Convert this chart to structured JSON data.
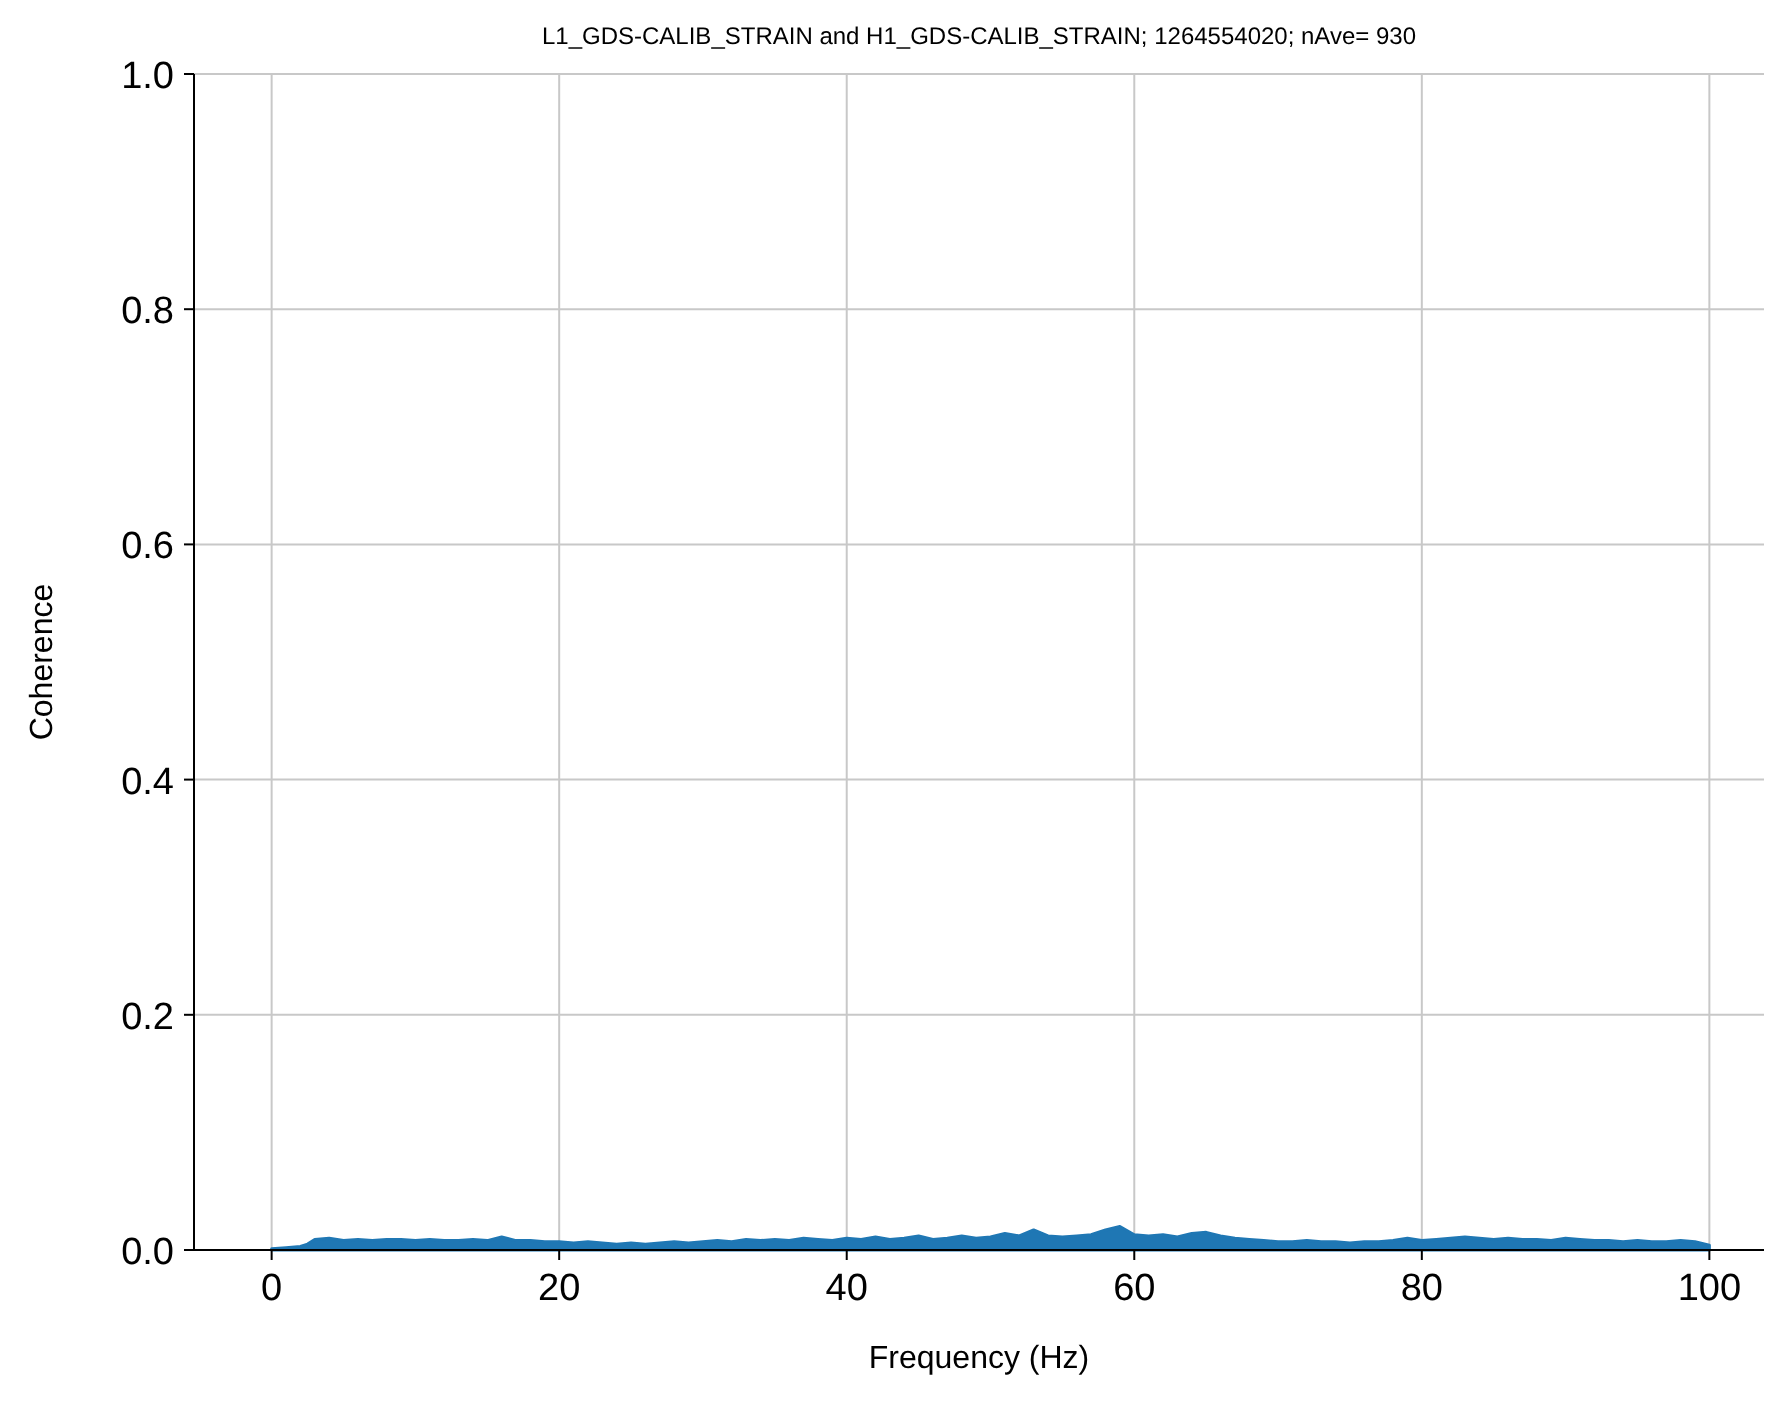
{
  "chart_data": {
    "type": "area",
    "title": "L1_GDS-CALIB_STRAIN and H1_GDS-CALIB_STRAIN; 1264554020; nAve= 930",
    "xlabel": "Frequency (Hz)",
    "ylabel": "Coherence",
    "x": [
      0,
      1,
      2,
      2.5,
      3,
      4,
      5,
      6,
      7,
      8,
      9,
      10,
      11,
      12,
      13,
      14,
      15,
      16,
      17,
      18,
      19,
      20,
      21,
      22,
      23,
      24,
      25,
      26,
      27,
      28,
      29,
      30,
      31,
      32,
      33,
      34,
      35,
      36,
      37,
      38,
      39,
      40,
      41,
      42,
      43,
      44,
      45,
      46,
      47,
      48,
      49,
      50,
      51,
      52,
      53,
      54,
      55,
      56,
      57,
      58,
      59,
      60,
      61,
      62,
      63,
      64,
      65,
      66,
      67,
      68,
      69,
      70,
      71,
      72,
      73,
      74,
      75,
      76,
      77,
      78,
      79,
      80,
      81,
      82,
      83,
      84,
      85,
      86,
      87,
      88,
      89,
      90,
      91,
      92,
      93,
      94,
      95,
      96,
      97,
      98,
      99,
      100
    ],
    "series": [
      {
        "color": "#1f77b4",
        "values": [
          0.001,
          0.002,
          0.003,
          0.005,
          0.009,
          0.01,
          0.008,
          0.009,
          0.008,
          0.009,
          0.009,
          0.008,
          0.009,
          0.008,
          0.008,
          0.009,
          0.008,
          0.011,
          0.008,
          0.008,
          0.007,
          0.007,
          0.006,
          0.007,
          0.006,
          0.005,
          0.006,
          0.005,
          0.006,
          0.007,
          0.006,
          0.007,
          0.008,
          0.007,
          0.009,
          0.008,
          0.009,
          0.008,
          0.01,
          0.009,
          0.008,
          0.01,
          0.009,
          0.011,
          0.009,
          0.01,
          0.012,
          0.009,
          0.01,
          0.012,
          0.01,
          0.011,
          0.014,
          0.012,
          0.017,
          0.012,
          0.011,
          0.012,
          0.013,
          0.017,
          0.02,
          0.013,
          0.012,
          0.013,
          0.011,
          0.014,
          0.015,
          0.012,
          0.01,
          0.009,
          0.008,
          0.007,
          0.007,
          0.008,
          0.007,
          0.007,
          0.006,
          0.007,
          0.007,
          0.008,
          0.01,
          0.008,
          0.009,
          0.01,
          0.011,
          0.01,
          0.009,
          0.01,
          0.009,
          0.009,
          0.008,
          0.01,
          0.009,
          0.008,
          0.008,
          0.007,
          0.008,
          0.007,
          0.007,
          0.008,
          0.007,
          0.004
        ]
      }
    ],
    "xlim": [
      -5.4,
      103.8
    ],
    "xticks": [
      0,
      20,
      40,
      60,
      80,
      100
    ],
    "ylim": [
      0,
      1
    ],
    "yticks": [
      {
        "value": 0,
        "label": "0.0"
      },
      {
        "value": 0.2,
        "label": "0.2"
      },
      {
        "value": 0.4,
        "label": "0.4"
      },
      {
        "value": 0.6,
        "label": "0.6"
      },
      {
        "value": 0.8,
        "label": "0.8"
      },
      {
        "value": 1,
        "label": "1.0"
      }
    ],
    "grid": true
  }
}
